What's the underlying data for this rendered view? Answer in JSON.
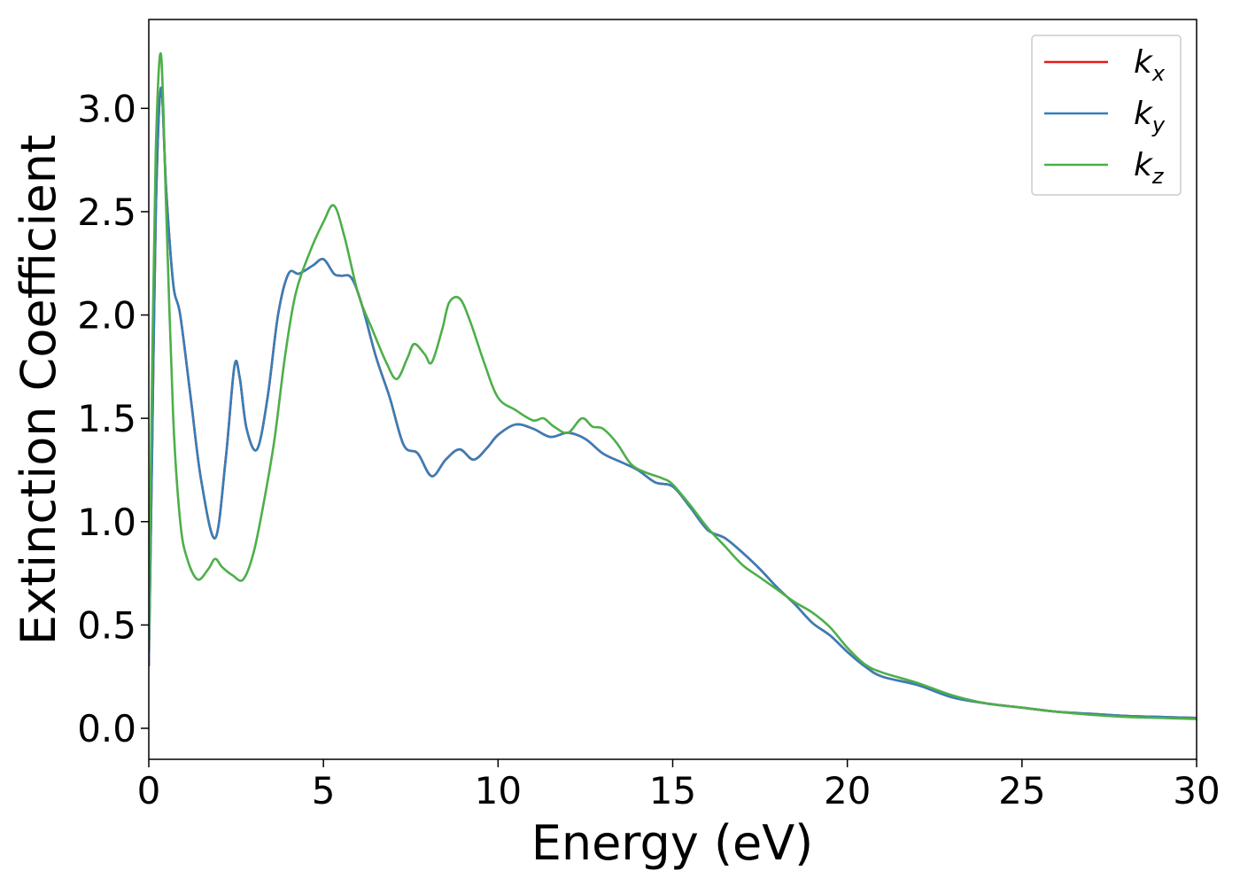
{
  "chart_data": {
    "type": "line",
    "title": "",
    "xlabel": "Energy (eV)",
    "ylabel": "Extinction Coefficient",
    "xlim": [
      0,
      30
    ],
    "ylim": [
      -0.15,
      3.43
    ],
    "xticks": [
      0,
      5,
      10,
      15,
      20,
      25,
      30
    ],
    "xtick_labels": [
      "0",
      "5",
      "10",
      "15",
      "20",
      "25",
      "30"
    ],
    "yticks": [
      0.0,
      0.5,
      1.0,
      1.5,
      2.0,
      2.5,
      3.0
    ],
    "ytick_labels": [
      "0.0",
      "0.5",
      "1.0",
      "1.5",
      "2.0",
      "2.5",
      "3.0"
    ],
    "grid": false,
    "legend": {
      "position": "top-right"
    },
    "series": [
      {
        "name": "k_x",
        "label_base": "k",
        "label_sub": "x",
        "color": "#e41a1c",
        "x": [
          0,
          0.1,
          0.2,
          0.35,
          0.5,
          0.7,
          0.9,
          1.2,
          1.5,
          1.9,
          2.2,
          2.45,
          2.6,
          2.8,
          3.1,
          3.4,
          3.7,
          4.0,
          4.3,
          4.7,
          5.0,
          5.3,
          5.5,
          5.8,
          6.1,
          6.5,
          6.9,
          7.3,
          7.7,
          8.1,
          8.5,
          8.9,
          9.3,
          9.7,
          10.0,
          10.5,
          11.0,
          11.5,
          12.0,
          12.5,
          13.0,
          13.5,
          14.0,
          14.5,
          15.0,
          15.5,
          16.0,
          16.5,
          17.0,
          17.5,
          18.0,
          18.5,
          19.0,
          19.5,
          20.0,
          20.5,
          21.0,
          22.0,
          23.0,
          24.0,
          25.0,
          26.0,
          27.0,
          28.0,
          29.0,
          30.0
        ],
        "y": [
          0.3,
          1.4,
          2.5,
          3.1,
          2.6,
          2.15,
          2.0,
          1.6,
          1.2,
          0.92,
          1.3,
          1.75,
          1.7,
          1.45,
          1.35,
          1.6,
          2.0,
          2.2,
          2.2,
          2.24,
          2.27,
          2.2,
          2.19,
          2.18,
          2.05,
          1.8,
          1.6,
          1.37,
          1.33,
          1.22,
          1.3,
          1.35,
          1.3,
          1.36,
          1.42,
          1.47,
          1.45,
          1.41,
          1.43,
          1.4,
          1.33,
          1.29,
          1.25,
          1.19,
          1.17,
          1.07,
          0.96,
          0.92,
          0.85,
          0.77,
          0.68,
          0.6,
          0.51,
          0.45,
          0.37,
          0.3,
          0.25,
          0.21,
          0.15,
          0.12,
          0.1,
          0.08,
          0.07,
          0.06,
          0.055,
          0.05
        ]
      },
      {
        "name": "k_y",
        "label_base": "k",
        "label_sub": "y",
        "color": "#377eb8",
        "x": [
          0,
          0.1,
          0.2,
          0.35,
          0.5,
          0.7,
          0.9,
          1.2,
          1.5,
          1.9,
          2.2,
          2.45,
          2.6,
          2.8,
          3.1,
          3.4,
          3.7,
          4.0,
          4.3,
          4.7,
          5.0,
          5.3,
          5.5,
          5.8,
          6.1,
          6.5,
          6.9,
          7.3,
          7.7,
          8.1,
          8.5,
          8.9,
          9.3,
          9.7,
          10.0,
          10.5,
          11.0,
          11.5,
          12.0,
          12.5,
          13.0,
          13.5,
          14.0,
          14.5,
          15.0,
          15.5,
          16.0,
          16.5,
          17.0,
          17.5,
          18.0,
          18.5,
          19.0,
          19.5,
          20.0,
          20.5,
          21.0,
          22.0,
          23.0,
          24.0,
          25.0,
          26.0,
          27.0,
          28.0,
          29.0,
          30.0
        ],
        "y": [
          0.3,
          1.4,
          2.5,
          3.1,
          2.6,
          2.15,
          2.0,
          1.6,
          1.2,
          0.92,
          1.3,
          1.75,
          1.7,
          1.45,
          1.35,
          1.6,
          2.0,
          2.2,
          2.2,
          2.24,
          2.27,
          2.2,
          2.19,
          2.18,
          2.05,
          1.8,
          1.6,
          1.37,
          1.33,
          1.22,
          1.3,
          1.35,
          1.3,
          1.36,
          1.42,
          1.47,
          1.45,
          1.41,
          1.43,
          1.4,
          1.33,
          1.29,
          1.25,
          1.19,
          1.17,
          1.07,
          0.96,
          0.92,
          0.85,
          0.77,
          0.68,
          0.6,
          0.51,
          0.45,
          0.37,
          0.3,
          0.25,
          0.21,
          0.15,
          0.12,
          0.1,
          0.08,
          0.07,
          0.06,
          0.055,
          0.05
        ]
      },
      {
        "name": "k_z",
        "label_base": "k",
        "label_sub": "z",
        "color": "#4daf4a",
        "x": [
          0,
          0.1,
          0.2,
          0.35,
          0.5,
          0.7,
          0.9,
          1.1,
          1.4,
          1.7,
          1.9,
          2.1,
          2.4,
          2.7,
          3.0,
          3.3,
          3.6,
          3.9,
          4.2,
          4.6,
          5.0,
          5.3,
          5.6,
          6.0,
          6.4,
          6.8,
          7.1,
          7.4,
          7.6,
          7.9,
          8.1,
          8.4,
          8.6,
          8.9,
          9.2,
          9.6,
          10.0,
          10.5,
          11.0,
          11.3,
          11.6,
          12.0,
          12.4,
          12.7,
          13.0,
          13.4,
          13.8,
          14.2,
          14.7,
          15.0,
          15.5,
          16.0,
          16.5,
          17.0,
          17.5,
          18.0,
          18.5,
          19.0,
          19.5,
          20.0,
          20.5,
          21.0,
          22.0,
          23.0,
          24.0,
          25.0,
          26.0,
          27.0,
          28.0,
          29.0,
          30.0
        ],
        "y": [
          0.4,
          1.8,
          2.8,
          3.26,
          2.5,
          1.5,
          1.0,
          0.82,
          0.72,
          0.77,
          0.82,
          0.78,
          0.74,
          0.72,
          0.85,
          1.1,
          1.4,
          1.8,
          2.1,
          2.3,
          2.45,
          2.53,
          2.38,
          2.1,
          1.93,
          1.77,
          1.69,
          1.79,
          1.86,
          1.81,
          1.77,
          1.93,
          2.06,
          2.08,
          1.97,
          1.77,
          1.6,
          1.54,
          1.49,
          1.5,
          1.46,
          1.43,
          1.5,
          1.46,
          1.45,
          1.38,
          1.28,
          1.24,
          1.21,
          1.18,
          1.08,
          0.97,
          0.88,
          0.79,
          0.73,
          0.67,
          0.61,
          0.56,
          0.49,
          0.39,
          0.31,
          0.27,
          0.22,
          0.16,
          0.12,
          0.1,
          0.08,
          0.065,
          0.055,
          0.05,
          0.045
        ]
      }
    ]
  }
}
